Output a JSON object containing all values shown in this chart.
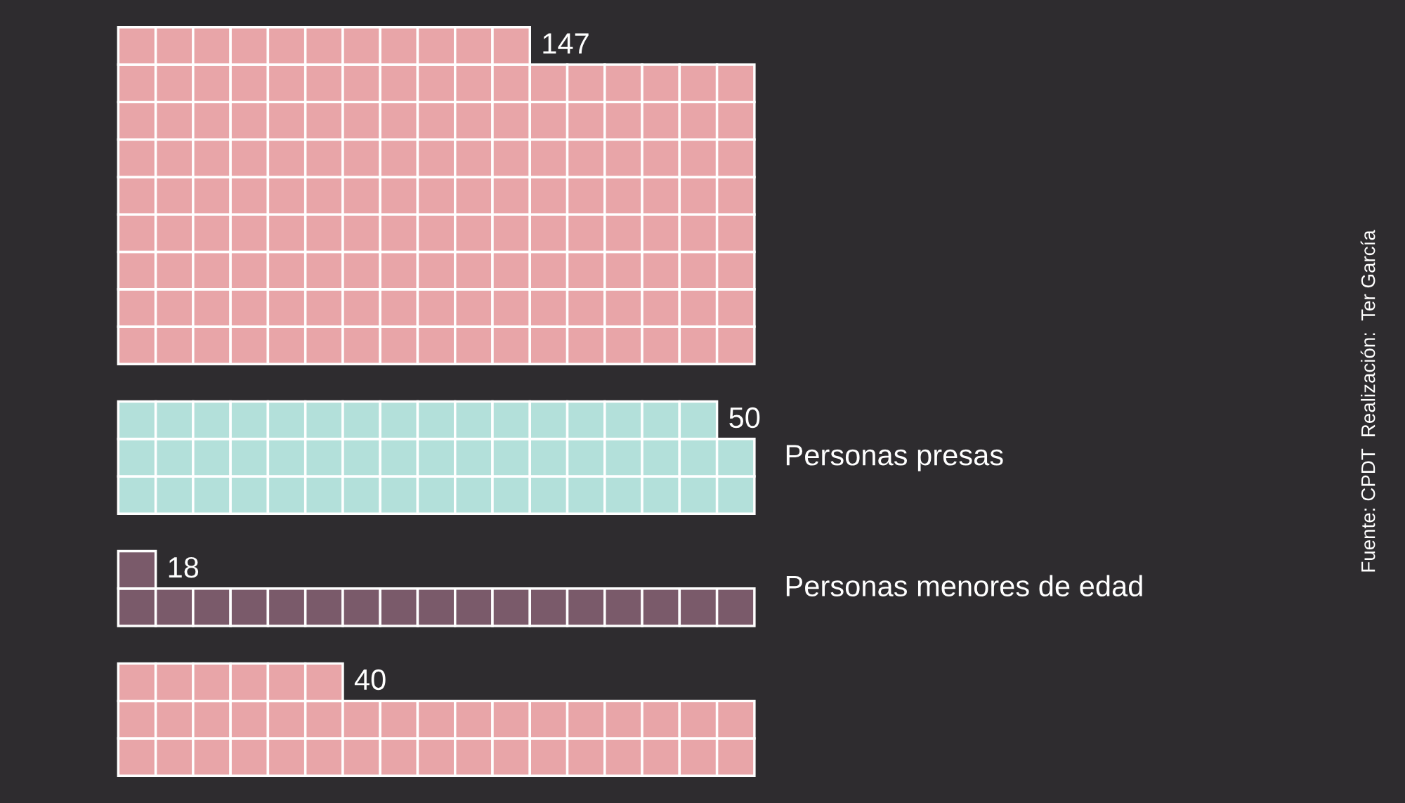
{
  "chart_data": {
    "type": "other",
    "categories": [
      null,
      "Personas presas",
      "Personas menores de edad",
      null
    ],
    "values": [
      147,
      50,
      18,
      40
    ],
    "colors": [
      "#e8a5a8",
      "#b3e0da",
      "#7a5a6a",
      "#e8a5a8"
    ],
    "data_labels": true,
    "annotations": [
      "Fuente: CPDT  Realización:  Ter García"
    ]
  }
}
